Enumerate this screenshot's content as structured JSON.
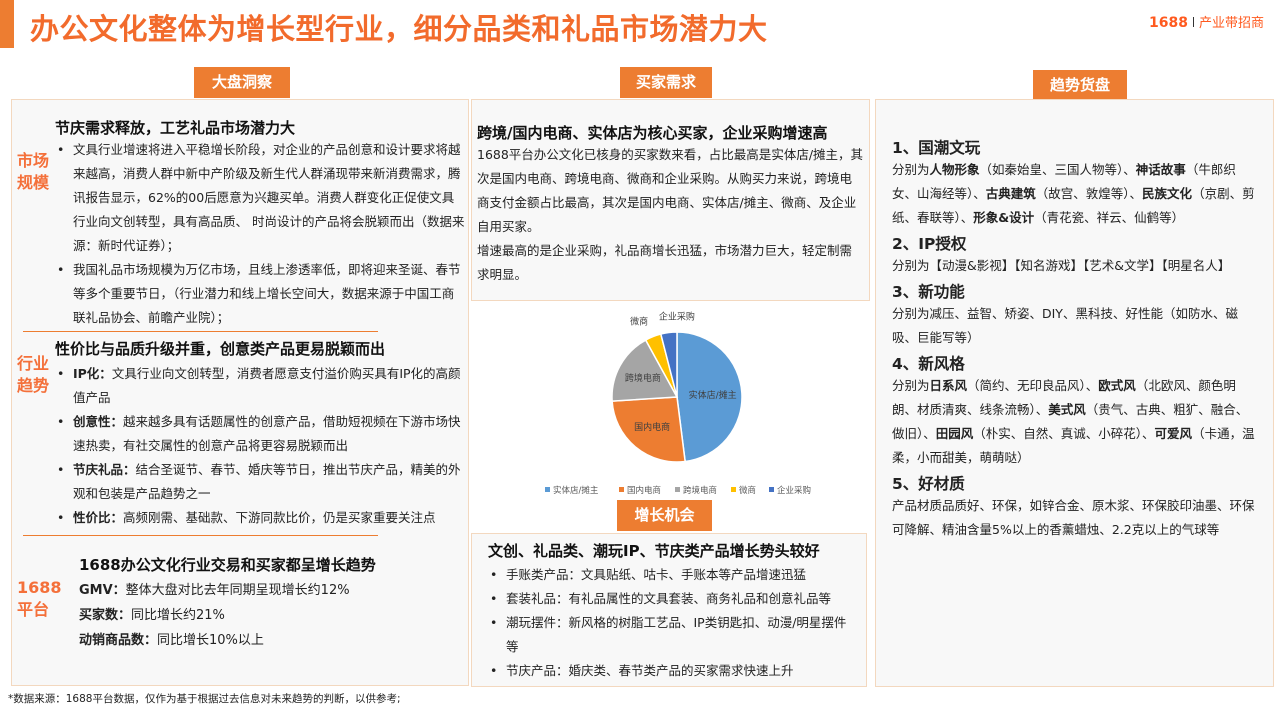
{
  "header": {
    "title": "办公文化整体为增长型行业，细分品类和礼品市场潜力大",
    "brand_num": "1688",
    "brand_text": "产业带招商"
  },
  "tabs": {
    "market": "大盘洞察",
    "buyers": "买家需求",
    "trends": "趋势货盘",
    "growth": "增长机会"
  },
  "left": {
    "s1": {
      "side": "市场规模",
      "heading": "节庆需求释放，工艺礼品市场潜力大",
      "bullets": [
        "文具行业增速将进入平稳增长阶段，对企业的产品创意和设计要求将越来越高，消费人群中新中产阶级及新生代人群涌现带来新消费需求，腾讯报告显示，62%的00后愿意为兴趣买单。消费人群变化正促使文具行业向文创转型，具有高品质、 时尚设计的产品将会脱颖而出（数据来源：新时代证券）；",
        "我国礼品市场规模为万亿市场，且线上渗透率低，即将迎来圣诞、春节等多个重要节日，（行业潜力和线上增长空间大，数据来源于中国工商联礼品协会、前瞻产业院）；"
      ]
    },
    "s2": {
      "side": "行业趋势",
      "heading": "性价比与品质升级并重，创意类产品更易脱颖而出",
      "bullets": [
        {
          "k": "IP化：",
          "v": "文具行业向文创转型，消费者愿意支付溢价购买具有IP化的高颜值产品"
        },
        {
          "k": "创意性：",
          "v": "越来越多具有话题属性的创意产品，借助短视频在下游市场快速热卖，有社交属性的创意产品将更容易脱颖而出"
        },
        {
          "k": "节庆礼品：",
          "v": "结合圣诞节、春节、婚庆等节日，推出节庆产品，精美的外观和包装是产品趋势之一"
        },
        {
          "k": "性价比：",
          "v": "高频刚需、基础款、下游同款比价，仍是买家重要关注点"
        }
      ]
    },
    "s3": {
      "side_num": "1688",
      "side_text": "平台",
      "heading": "1688办公文化行业交易和买家都呈增长趋势",
      "rows": [
        {
          "k": "GMV：",
          "v": "整体大盘对比去年同期呈现增长约12%"
        },
        {
          "k": "买家数：",
          "v": "同比增长约21%"
        },
        {
          "k": "动销商品数：",
          "v": "同比增长10%以上"
        }
      ]
    }
  },
  "buyers": {
    "heading": "跨境/国内电商、实体店为核心买家，企业采购增速高",
    "p1": "1688平台办公文化已核身的买家数来看，占比最高是实体店/摊主，其次是国内电商、跨境电商、微商和企业采购。从购买力来说，跨境电商支付金额占比最高，其次是国内电商、实体店/摊主、微商、及企业自用买家。",
    "p2": "增速最高的是企业采购，礼品商增长迅猛，市场潜力巨大，轻定制需求明显。"
  },
  "chart_data": {
    "type": "pie",
    "categories": [
      "实体店/摊主",
      "国内电商",
      "跨境电商",
      "微商",
      "企业采购"
    ],
    "values": [
      48,
      26,
      18,
      4,
      4
    ],
    "colors": [
      "#5b9bd5",
      "#ed7d31",
      "#a5a5a5",
      "#ffc000",
      "#4472c4"
    ],
    "legend": "bottom"
  },
  "growth": {
    "heading": "文创、礼品类、潮玩IP、节庆类产品增长势头较好",
    "bullets": [
      "手账类产品：文具贴纸、咕卡、手账本等产品增速迅猛",
      "套装礼品：有礼品属性的文具套装、商务礼品和创意礼品等",
      "潮玩摆件：新风格的树脂工艺品、IP类钥匙扣、动漫/明星摆件等",
      "节庆产品：婚庆类、春节类产品的买家需求快速上升"
    ]
  },
  "trends": [
    {
      "title": "1、国潮文玩",
      "segs": [
        {
          "t": "分别为"
        },
        {
          "t": "人物形象",
          "b": 1
        },
        {
          "t": "（如秦始皇、三国人物等）、"
        },
        {
          "t": "神话故事",
          "b": 1
        },
        {
          "t": "（牛郎织女、山海经等）、"
        },
        {
          "t": "古典建筑",
          "b": 1
        },
        {
          "t": "（故宫、敦煌等）、"
        },
        {
          "t": "民族文化",
          "b": 1
        },
        {
          "t": "（京剧、剪纸、春联等）、"
        },
        {
          "t": "形象&设计",
          "b": 1
        },
        {
          "t": "（青花瓷、祥云、仙鹤等）"
        }
      ]
    },
    {
      "title": "2、IP授权",
      "segs": [
        {
          "t": "分别为【动漫&影视】【知名游戏】【艺术&文学】【明星名人】"
        }
      ]
    },
    {
      "title": "3、新功能",
      "segs": [
        {
          "t": "分别为减压、益智、矫姿、DIY、黑科技、好性能（如防水、磁吸、巨能写等）"
        }
      ]
    },
    {
      "title": "4、新风格",
      "segs": [
        {
          "t": "分别为"
        },
        {
          "t": "日系风",
          "b": 1
        },
        {
          "t": "（简约、无印良品风）、"
        },
        {
          "t": "欧式风",
          "b": 1
        },
        {
          "t": "（北欧风、颜色明朗、材质清爽、线条流畅）、"
        },
        {
          "t": "美式风",
          "b": 1
        },
        {
          "t": "（贵气、古典、粗犷、融合、做旧）、"
        },
        {
          "t": "田园风",
          "b": 1
        },
        {
          "t": "（朴实、自然、真诚、小碎花）、"
        },
        {
          "t": "可爱风",
          "b": 1
        },
        {
          "t": "（卡通，温柔，小而甜美，萌萌哒）"
        }
      ]
    },
    {
      "title": "5、好材质",
      "segs": [
        {
          "t": "产品材质品质好、环保，如锌合金、原木浆、环保胶印油墨、环保可降解、精油含量5%以上的香薰蜡烛、2.2克以上的气球等"
        }
      ]
    }
  ],
  "footnote": "*数据来源：1688平台数据，仅作为基于根据过去信息对未来趋势的判断，以供参考;"
}
